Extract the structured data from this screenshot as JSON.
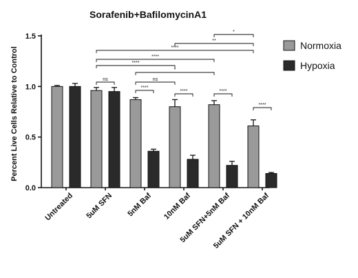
{
  "chart_data": {
    "type": "bar",
    "title": "Sorafenib+BafilomycinA1",
    "ylabel": "Percent Live Cells Relative to Control",
    "xlabel": "",
    "ylim": [
      0,
      1.5
    ],
    "yticks": [
      "0.0",
      "0.5",
      "1.0",
      "1.5"
    ],
    "categories": [
      "Untreated",
      "5uM SFN",
      "5nM Baf",
      "10nM Baf",
      "5uM SFN+5nM Baf",
      "5uM SFN + 10nM Baf"
    ],
    "series": [
      {
        "name": "Normoxia",
        "color": "#9a9a9a",
        "values": [
          1.0,
          0.96,
          0.87,
          0.8,
          0.82,
          0.61
        ],
        "errors": [
          0.01,
          0.03,
          0.02,
          0.07,
          0.04,
          0.06
        ]
      },
      {
        "name": "Hypoxia",
        "color": "#2a2a2a",
        "values": [
          1.0,
          0.95,
          0.36,
          0.28,
          0.22,
          0.14
        ],
        "errors": [
          0.03,
          0.04,
          0.02,
          0.04,
          0.04,
          0.01
        ]
      }
    ],
    "legend_position": "right",
    "grid": false,
    "comparisons": [
      {
        "from": [
          1,
          0
        ],
        "to": [
          1,
          1
        ],
        "label": "ns"
      },
      {
        "from": [
          2,
          0
        ],
        "to": [
          2,
          1
        ],
        "label": "****"
      },
      {
        "from": [
          3,
          0
        ],
        "to": [
          3,
          1
        ],
        "label": "****"
      },
      {
        "from": [
          4,
          0
        ],
        "to": [
          4,
          1
        ],
        "label": "****"
      },
      {
        "from": [
          5,
          0
        ],
        "to": [
          5,
          1
        ],
        "label": "****"
      },
      {
        "from": [
          2,
          0
        ],
        "to": [
          3,
          0
        ],
        "label": "ns"
      },
      {
        "from": [
          2,
          0
        ],
        "to": [
          4,
          0
        ],
        "label": "*"
      },
      {
        "from": [
          1,
          0
        ],
        "to": [
          3,
          0
        ],
        "label": "****"
      },
      {
        "from": [
          1,
          0
        ],
        "to": [
          4,
          0
        ],
        "label": "****"
      },
      {
        "from": [
          1,
          0
        ],
        "to": [
          5,
          0
        ],
        "label": "****"
      },
      {
        "from": [
          3,
          0
        ],
        "to": [
          5,
          0
        ],
        "label": "**"
      },
      {
        "from": [
          4,
          0
        ],
        "to": [
          5,
          0
        ],
        "label": "*"
      }
    ]
  }
}
